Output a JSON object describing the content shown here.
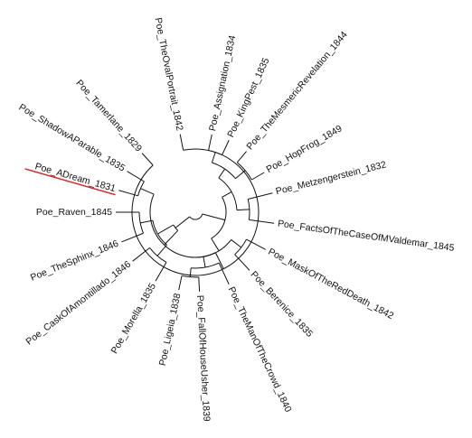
{
  "diagram": {
    "type": "circular-dendrogram",
    "highlight_color": "#e02020",
    "line_color": "#111111",
    "highlighted_leaf": "Poe_ADream_1831",
    "leaves": [
      "Poe_TheOvalPortrait_1842",
      "Poe_Assignation_1834",
      "Poe_KingPest_1835",
      "Poe_TheMesmericRevelation_1844",
      "Poe_HopFrog_1849",
      "Poe_Metzengerstein_1832",
      "Poe_FactsOfTheCaseOfMValdemar_1845",
      "Poe_MaskOfTheRedDeath_1842",
      "Poe_Berenice_1835",
      "Poe_TheManOfTheCrowd_1840",
      "Poe_FallOfHouseUsher_1839",
      "Poe_Ligeia_1838",
      "Poe_Morella_1835",
      "Poe_CaskOfAmontillado_1846",
      "Poe_TheSphinx_1846",
      "Poe_Raven_1845",
      "Poe_ADream_1831",
      "Poe_ShadowAParable_1835",
      "Poe_Tamerlane_1829"
    ]
  }
}
